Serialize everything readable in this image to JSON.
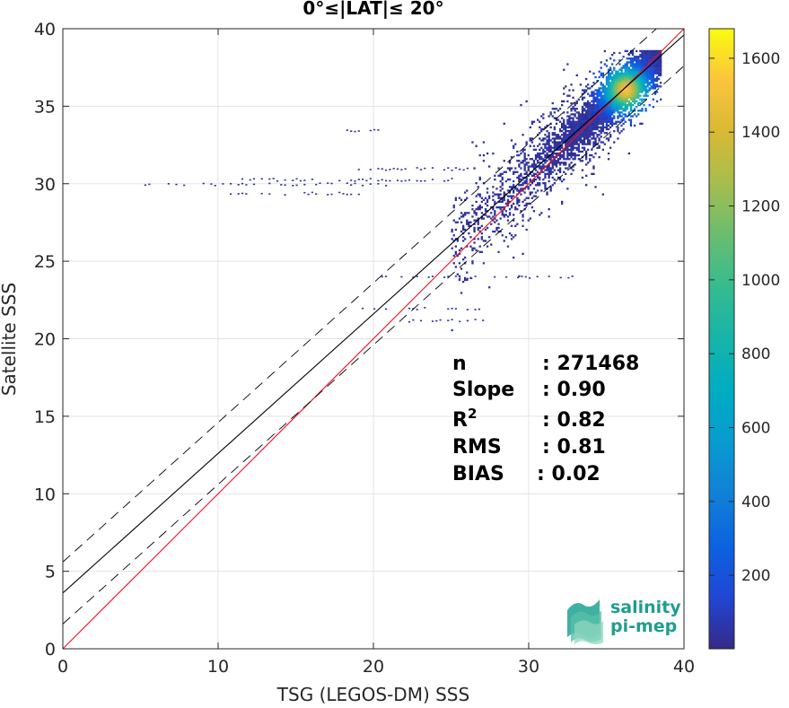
{
  "chart_data": {
    "type": "heatmap",
    "title": "0°≤|LAT|≤ 20°",
    "xlabel": "TSG (LEGOS-DM) SSS",
    "ylabel": "Satellite SSS",
    "xlim": [
      0,
      40
    ],
    "ylim": [
      0,
      40
    ],
    "xticks": [
      0,
      10,
      20,
      30,
      40
    ],
    "yticks": [
      0,
      5,
      10,
      15,
      20,
      25,
      30,
      35,
      40
    ],
    "grid": true,
    "colorbar": {
      "min": 1,
      "max": 1680,
      "ticks": [
        200,
        400,
        600,
        800,
        1000,
        1200,
        1400,
        1600
      ],
      "colormap": "parula"
    },
    "density": {
      "peak": [
        36.2,
        36.0
      ],
      "core_bounds": {
        "x": [
          25,
          38.5
        ],
        "y": [
          20.5,
          38.5
        ]
      },
      "fringe_rows": [
        {
          "y": 30.0,
          "x": [
            5.0,
            21.0
          ]
        },
        {
          "y": 30.3,
          "x": [
            11.0,
            25.0
          ]
        },
        {
          "y": 29.4,
          "x": [
            10.5,
            19.5
          ]
        },
        {
          "y": 31.0,
          "x": [
            19.0,
            26.0
          ]
        },
        {
          "y": 33.5,
          "x": [
            18.0,
            20.5
          ]
        },
        {
          "y": 24.0,
          "x": [
            19.5,
            33.0
          ]
        },
        {
          "y": 22.0,
          "x": [
            19.0,
            27.5
          ]
        },
        {
          "y": 21.2,
          "x": [
            22.0,
            27.0
          ]
        }
      ]
    },
    "lines": [
      {
        "name": "one-to-one",
        "style": "solid",
        "color": "#e8141b",
        "intercept": 0.0,
        "slope": 1.0
      },
      {
        "name": "regression fit",
        "style": "solid",
        "color": "#000000",
        "intercept": 3.6,
        "slope": 0.9
      },
      {
        "name": "upper bound",
        "style": "dashed",
        "color": "#000000",
        "intercept": 5.6,
        "slope": 0.9
      },
      {
        "name": "lower bound",
        "style": "dashed",
        "color": "#000000",
        "intercept": 1.6,
        "slope": 0.9
      }
    ],
    "stats": [
      {
        "label": "n",
        "value": ": 271468"
      },
      {
        "label": "Slope",
        "value": ": 0.90"
      },
      {
        "label": "R",
        "sup": "2",
        "value": ": 0.82"
      },
      {
        "label": "RMS",
        "value": ": 0.81"
      },
      {
        "label": "BIAS",
        "value": ": 0.02"
      }
    ]
  },
  "logo": {
    "line1": "salinity",
    "line2": "pi-mep",
    "color": "#1f9e8c"
  }
}
